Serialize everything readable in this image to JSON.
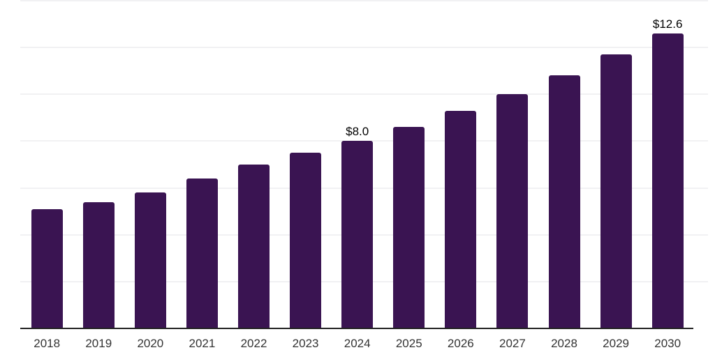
{
  "chart_data": {
    "type": "bar",
    "title": "",
    "xlabel": "",
    "ylabel": "",
    "categories": [
      "2018",
      "2019",
      "2020",
      "2021",
      "2022",
      "2023",
      "2024",
      "2025",
      "2026",
      "2027",
      "2028",
      "2029",
      "2030"
    ],
    "values": [
      5.1,
      5.4,
      5.8,
      6.4,
      7.0,
      7.5,
      8.0,
      8.6,
      9.3,
      10.0,
      10.8,
      11.7,
      12.6
    ],
    "bar_labels": {
      "2024": "$8.0",
      "2030": "$12.6"
    },
    "ylim": [
      0,
      14
    ],
    "gridline_step": 2,
    "grid": "on",
    "legend": "none",
    "y_axis_tick_labels_visible": false,
    "colors": {
      "bar": "#3A1452",
      "axis": "#222222",
      "gridline": "#F1F1F3",
      "tick_label": "#333333",
      "data_label": "#000000",
      "background": "#FFFFFF"
    }
  }
}
